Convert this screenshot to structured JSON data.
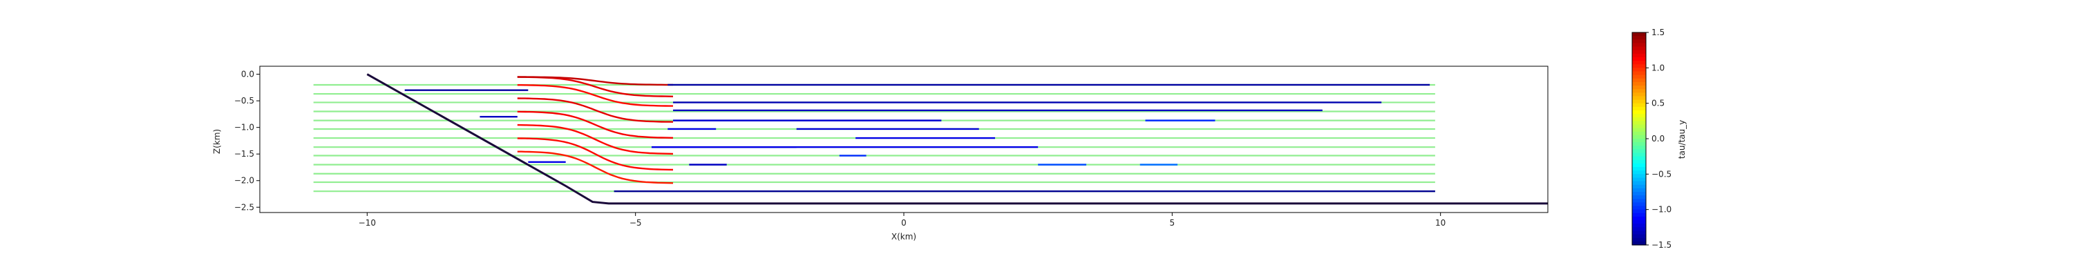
{
  "chart_data": {
    "type": "line",
    "title": "",
    "xlabel": "X(km)",
    "ylabel": "Z(km)",
    "xlim": [
      -12,
      12
    ],
    "ylim": [
      -2.6,
      0.15
    ],
    "x_ticks": [
      -10,
      -5,
      0,
      5,
      10
    ],
    "x_tick_labels": [
      "−10",
      "−5",
      "0",
      "5",
      "10"
    ],
    "y_ticks": [
      0.0,
      -0.5,
      -1.0,
      -1.5,
      -2.0,
      -2.5
    ],
    "y_tick_labels": [
      "0.0",
      "−0.5",
      "−1.0",
      "−1.5",
      "−2.0",
      "−2.5"
    ],
    "grid": false,
    "colorbar": {
      "label": "tau/tau_y",
      "range": [
        -1.5,
        1.5
      ],
      "colormap": "jet",
      "ticks": [
        1.5,
        1.0,
        0.5,
        0.0,
        -0.5,
        -1.0,
        -1.5
      ],
      "tick_labels": [
        "1.5",
        "1.0",
        "0.5",
        "0.0",
        "−0.5",
        "−1.0",
        "−1.5"
      ]
    },
    "fault": {
      "description_color": "#1a0a3a",
      "points": [
        [
          -10.0,
          0.0
        ],
        [
          -6.3,
          -2.1
        ],
        [
          -5.8,
          -2.4
        ],
        [
          -5.5,
          -2.43
        ],
        [
          12.0,
          -2.43
        ]
      ]
    },
    "flowlines": {
      "flat_green": {
        "color": "#90ee90",
        "x_start": -11.0,
        "x_end": 9.9,
        "z_levels": [
          -0.2,
          -0.37,
          -0.53,
          -0.7,
          -0.87,
          -1.03,
          -1.2,
          -1.37,
          -1.53,
          -1.7,
          -1.87,
          -2.03,
          -2.2
        ]
      },
      "bent_stress_lines": {
        "x_start": -7.2,
        "x_end": -4.3,
        "pairs": [
          {
            "z_in": -0.05,
            "z_out": -0.42,
            "value": 1.2
          },
          {
            "z_in": -0.05,
            "z_out": -0.2,
            "value": 1.3
          },
          {
            "z_in": -0.2,
            "z_out": -0.6,
            "value": 1.1
          },
          {
            "z_in": -0.45,
            "z_out": -0.9,
            "value": 1.2
          },
          {
            "z_in": -0.7,
            "z_out": -1.2,
            "value": 1.15
          },
          {
            "z_in": -0.95,
            "z_out": -1.5,
            "value": 1.1
          },
          {
            "z_in": -1.2,
            "z_out": -1.8,
            "value": 1.1
          },
          {
            "z_in": -1.45,
            "z_out": -2.05,
            "value": 1.05
          }
        ]
      },
      "blue_segments": [
        {
          "x": [
            -4.4,
            9.8
          ],
          "z": -0.2,
          "value": -1.4
        },
        {
          "x": [
            -4.3,
            8.9
          ],
          "z": -0.53,
          "value": -1.35
        },
        {
          "x": [
            -4.3,
            7.8
          ],
          "z": -0.68,
          "value": -1.3
        },
        {
          "x": [
            -4.3,
            0.7
          ],
          "z": -0.87,
          "value": -1.25
        },
        {
          "x": [
            -4.4,
            -3.5
          ],
          "z": -1.03,
          "value": -1.2
        },
        {
          "x": [
            -2.0,
            1.4
          ],
          "z": -1.03,
          "value": -1.25
        },
        {
          "x": [
            -0.9,
            1.7
          ],
          "z": -1.2,
          "value": -1.2
        },
        {
          "x": [
            -4.7,
            -2.0
          ],
          "z": -1.37,
          "value": -1.3
        },
        {
          "x": [
            -4.0,
            -3.3
          ],
          "z": -1.7,
          "value": -1.3
        },
        {
          "x": [
            -4.7,
            2.5
          ],
          "z": -1.37,
          "value": -1.2
        },
        {
          "x": [
            -1.2,
            -0.7
          ],
          "z": -1.53,
          "value": -1.0
        },
        {
          "x": [
            -5.4,
            9.9
          ],
          "z": -2.2,
          "value": -1.45
        },
        {
          "x": [
            -9.3,
            -7.0
          ],
          "z": -0.3,
          "value": -1.4
        },
        {
          "x": [
            -7.9,
            -7.2
          ],
          "z": -0.8,
          "value": -1.3
        },
        {
          "x": [
            -7.0,
            -6.3
          ],
          "z": -1.65,
          "value": -1.2
        },
        {
          "x": [
            4.5,
            5.8
          ],
          "z": -0.87,
          "value": -1.0
        },
        {
          "x": [
            2.5,
            3.4
          ],
          "z": -1.7,
          "value": -0.9
        },
        {
          "x": [
            4.4,
            5.1
          ],
          "z": -1.7,
          "value": -0.8
        }
      ]
    }
  }
}
